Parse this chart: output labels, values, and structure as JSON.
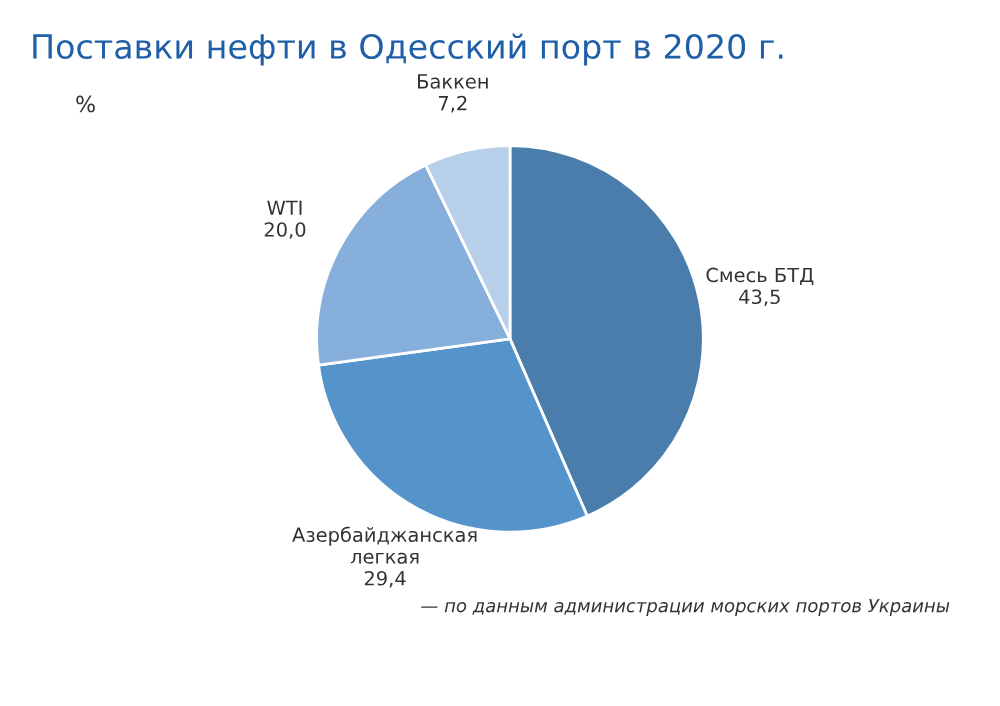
{
  "chart_data": {
    "type": "pie",
    "title": "Поставки нефти в Одесский порт в 2020 г.",
    "categories": [
      "Смесь БТД",
      "Азербайджанская\nлегкая",
      "WTI",
      "Баккен"
    ],
    "values": [
      43.5,
      29.4,
      20.0,
      7.2
    ],
    "value_labels": [
      "43,5",
      "29,4",
      "20,0",
      "7,2"
    ],
    "colors": [
      "#4a7dab",
      "#5593cb",
      "#86afdc",
      "#b8cfea"
    ],
    "annotations": [
      "%",
      "— по данным администрации морских портов Украины"
    ]
  }
}
